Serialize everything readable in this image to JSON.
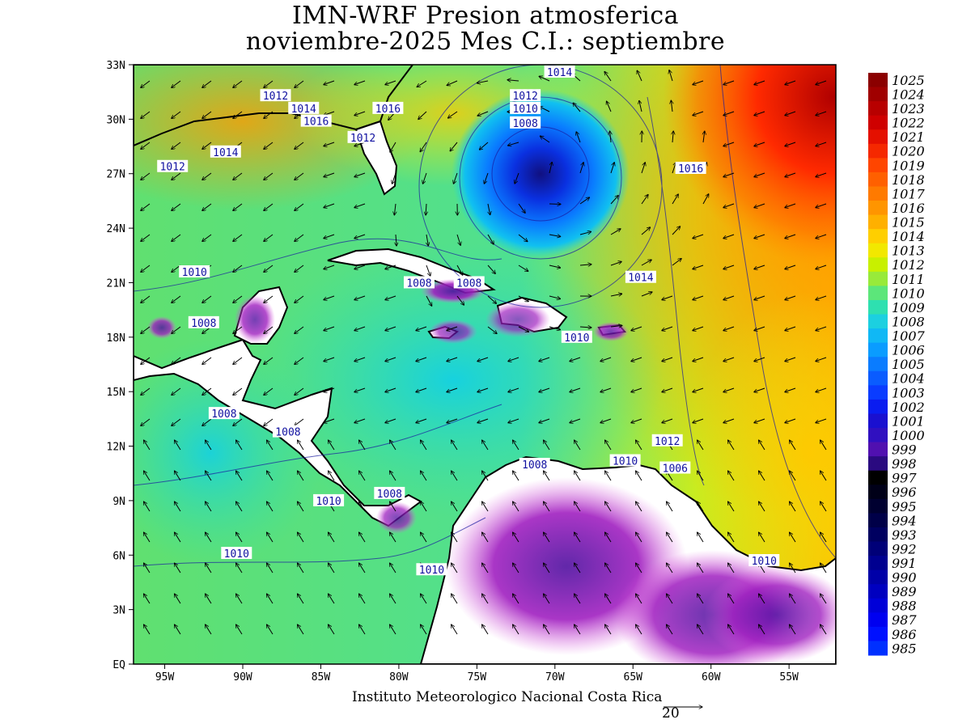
{
  "title_line1": "IMN-WRF  Presion atmosferica",
  "title_line2": "noviembre-2025 Mes C.I.: septiembre",
  "credit": "Instituto Meteorologico Nacional Costa Rica",
  "vector_ref_label": "20",
  "lat_labels": [
    "33N",
    "30N",
    "27N",
    "24N",
    "21N",
    "18N",
    "15N",
    "12N",
    "9N",
    "6N",
    "3N",
    "EQ"
  ],
  "lon_labels": [
    "95W",
    "90W",
    "85W",
    "80W",
    "75W",
    "70W",
    "65W",
    "60W",
    "55W"
  ],
  "colorbar": {
    "labels": [
      "1025",
      "1024",
      "1023",
      "1022",
      "1021",
      "1020",
      "1019",
      "1018",
      "1017",
      "1016",
      "1015",
      "1014",
      "1013",
      "1012",
      "1011",
      "1010",
      "1009",
      "1008",
      "1007",
      "1006",
      "1005",
      "1004",
      "1003",
      "1002",
      "1001",
      "1000",
      "999",
      "998",
      "997",
      "996",
      "995",
      "994",
      "993",
      "992",
      "991",
      "990",
      "989",
      "988",
      "987",
      "986",
      "985"
    ],
    "colors": [
      "#8b0000",
      "#a00000",
      "#b80000",
      "#cf0000",
      "#e41000",
      "#f52800",
      "#ff4500",
      "#ff6000",
      "#ff7a00",
      "#ff9500",
      "#ffb000",
      "#ffcf00",
      "#f2e800",
      "#c8f000",
      "#98ea3a",
      "#5ce67a",
      "#2ee0b0",
      "#1cd0e0",
      "#10b8f5",
      "#0a9cff",
      "#0a7cff",
      "#0a5cff",
      "#0a3cff",
      "#0a1cf0",
      "#1a10d0",
      "#3010c0",
      "#5010b0",
      "#2a0a80",
      "#000000",
      "#000018",
      "#000030",
      "#000048",
      "#000060",
      "#000078",
      "#000090",
      "#0000a8",
      "#0000c0",
      "#0000d8",
      "#0000f0",
      "#0010ff",
      "#0030ff"
    ]
  },
  "contour_labels": [
    {
      "text": "1014",
      "lon": -69.7,
      "lat": 32.6
    },
    {
      "text": "1012",
      "lon": -87.9,
      "lat": 31.3
    },
    {
      "text": "1014",
      "lon": -86.1,
      "lat": 30.6
    },
    {
      "text": "1016",
      "lon": -80.7,
      "lat": 30.6
    },
    {
      "text": "1016",
      "lon": -85.3,
      "lat": 29.9
    },
    {
      "text": "1012",
      "lon": -71.9,
      "lat": 31.3
    },
    {
      "text": "1010",
      "lon": -71.9,
      "lat": 30.6
    },
    {
      "text": "1008",
      "lon": -71.9,
      "lat": 29.8
    },
    {
      "text": "1012",
      "lon": -82.3,
      "lat": 29.0
    },
    {
      "text": "1014",
      "lon": -91.1,
      "lat": 28.2
    },
    {
      "text": "1012",
      "lon": -94.5,
      "lat": 27.4
    },
    {
      "text": "1016",
      "lon": -61.3,
      "lat": 27.3
    },
    {
      "text": "1010",
      "lon": -93.1,
      "lat": 21.6
    },
    {
      "text": "1014",
      "lon": -64.5,
      "lat": 21.3
    },
    {
      "text": "1008",
      "lon": -78.7,
      "lat": 21.0
    },
    {
      "text": "1008",
      "lon": -75.5,
      "lat": 21.0
    },
    {
      "text": "1008",
      "lon": -92.5,
      "lat": 18.8
    },
    {
      "text": "1010",
      "lon": -68.6,
      "lat": 18.0
    },
    {
      "text": "1008",
      "lon": -91.2,
      "lat": 13.8
    },
    {
      "text": "1008",
      "lon": -87.1,
      "lat": 12.8
    },
    {
      "text": "1012",
      "lon": -62.8,
      "lat": 12.3
    },
    {
      "text": "1008",
      "lon": -71.3,
      "lat": 11.0
    },
    {
      "text": "1010",
      "lon": -65.5,
      "lat": 11.2
    },
    {
      "text": "1006",
      "lon": -62.3,
      "lat": 10.8
    },
    {
      "text": "1008",
      "lon": -80.6,
      "lat": 9.4
    },
    {
      "text": "1010",
      "lon": -84.5,
      "lat": 9.0
    },
    {
      "text": "1010",
      "lon": -90.4,
      "lat": 6.1
    },
    {
      "text": "1010",
      "lon": -77.9,
      "lat": 5.2
    },
    {
      "text": "1010",
      "lon": -56.6,
      "lat": 5.7
    }
  ]
}
